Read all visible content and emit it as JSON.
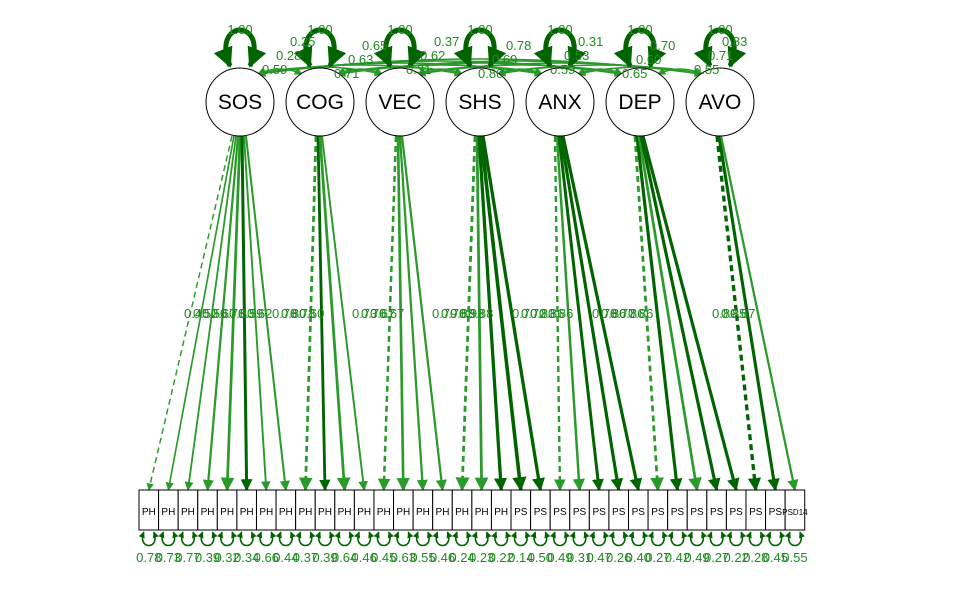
{
  "diagram": {
    "colors": {
      "edge": "#2a9a2a",
      "edge_strong": "#006400",
      "label": "#1f8b1f",
      "node_fill": "#ffffff",
      "node_stroke": "#000000"
    },
    "latents": [
      "SOS",
      "COG",
      "VEC",
      "SHS",
      "ANX",
      "DEP",
      "AVO"
    ],
    "latent_variances": [
      "1.00",
      "1.00",
      "1.00",
      "1.00",
      "1.00",
      "1.00",
      "1.00"
    ],
    "observed": [
      "PH",
      "PH",
      "PH",
      "PH",
      "PH",
      "PH",
      "PH",
      "PH",
      "PH",
      "PH",
      "PH",
      "PH",
      "PH",
      "PH",
      "PH",
      "PH",
      "PH",
      "PH",
      "PH",
      "PS",
      "PS",
      "PS",
      "PS",
      "PS",
      "PS",
      "PS",
      "PS",
      "PS",
      "PS",
      "PS",
      "PS",
      "PS",
      "PS",
      "PSD14"
    ],
    "factor_groups": [
      {
        "factor": "SOS",
        "items": [
          0,
          1,
          2,
          3,
          4,
          5,
          6,
          7
        ],
        "loadings": [
          "0.45",
          "0.52",
          "0.56",
          "0.67",
          "0.78",
          "0.83",
          "0.59",
          "0.62"
        ]
      },
      {
        "factor": "COG",
        "items": [
          8,
          9,
          10,
          11
        ],
        "loadings": [
          "0.78",
          "0.80",
          "0.78",
          "0.60"
        ]
      },
      {
        "factor": "VEC",
        "items": [
          12,
          13,
          14,
          15
        ],
        "loadings": [
          "0.73",
          "0.76",
          "0.67",
          "0.67"
        ]
      },
      {
        "factor": "SHS",
        "items": [
          16,
          17,
          18,
          19,
          20
        ],
        "loadings": [
          "0.79",
          "0.78",
          "0.88",
          "0.93",
          "0.88"
        ]
      },
      {
        "factor": "ANX",
        "items": [
          21,
          22,
          23,
          24,
          25
        ],
        "loadings": [
          "0.70",
          "0.72",
          "0.83",
          "0.86",
          "0.86"
        ]
      },
      {
        "factor": "DEP",
        "items": [
          26,
          27,
          28,
          29,
          30
        ],
        "loadings": [
          "0.78",
          "0.86",
          "0.77",
          "0.86",
          "0.86"
        ]
      },
      {
        "factor": "AVO",
        "items": [
          31,
          32,
          33
        ],
        "loadings": [
          "0.89",
          "0.85",
          "0.67"
        ]
      }
    ],
    "covariance_labels": [
      "0.59",
      "0.71",
      "0.31",
      "0.80",
      "0.59",
      "0.65",
      "0.55",
      "0.28",
      "0.63",
      "0.62",
      "0.69",
      "0.53",
      "0.60",
      "0.71",
      "0.25",
      "0.65",
      "0.37",
      "0.78",
      "0.31",
      "0.70",
      "0.83"
    ],
    "error_variances": [
      "0.78",
      "0.73",
      "0.77",
      "0.39",
      "0.32",
      "0.34",
      "0.66",
      "0.44",
      "0.37",
      "0.39",
      "0.64",
      "0.46",
      "0.45",
      "0.63",
      "0.55",
      "0.46",
      "0.24",
      "0.23",
      "0.22",
      "0.14",
      "0.50",
      "0.49",
      "0.31",
      "0.47",
      "0.26",
      "0.40",
      "0.27",
      "0.42",
      "0.49",
      "0.27",
      "0.22",
      "0.28",
      "0.45",
      "0.55"
    ]
  }
}
